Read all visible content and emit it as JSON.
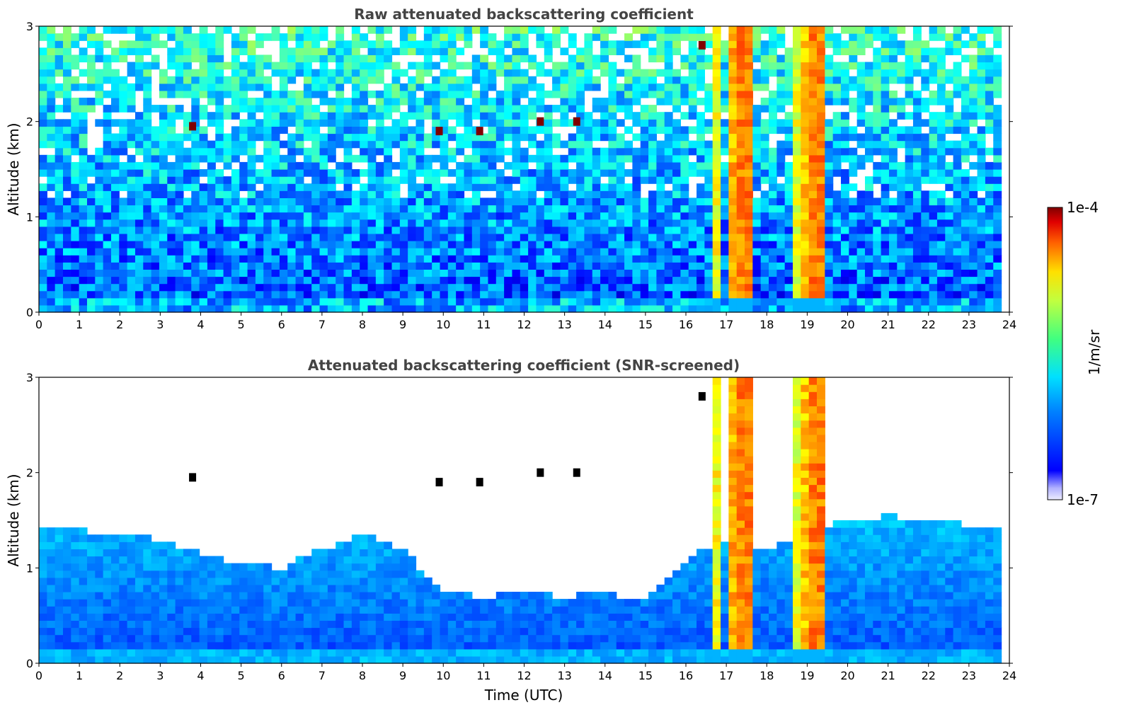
{
  "chart_data": [
    {
      "type": "heatmap",
      "title": "Raw attenuated backscattering coefficient",
      "xlabel": "",
      "ylabel": "Altitude (km)",
      "xlim": [
        0,
        24
      ],
      "ylim": [
        0,
        3
      ],
      "xticks": [
        "0",
        "1",
        "2",
        "3",
        "4",
        "5",
        "6",
        "7",
        "8",
        "9",
        "10",
        "11",
        "12",
        "13",
        "14",
        "15",
        "16",
        "17",
        "18",
        "19",
        "20",
        "21",
        "22",
        "23",
        "24"
      ],
      "yticks": [
        "0",
        "1",
        "2",
        "3"
      ],
      "data_extent_x": [
        0,
        23.8
      ],
      "screened": false,
      "cloud_bands": [
        {
          "x": [
            16.6,
            16.8
          ],
          "color_level": 0.62
        },
        {
          "x": [
            17.1,
            17.35
          ],
          "color_level": 0.7
        },
        {
          "x": [
            17.35,
            17.7
          ],
          "color_level": 0.75
        },
        {
          "x": [
            18.6,
            18.85
          ],
          "color_level": 0.6
        },
        {
          "x": [
            18.85,
            19.1
          ],
          "color_level": 0.68
        },
        {
          "x": [
            19.1,
            19.5
          ],
          "color_level": 0.75
        }
      ],
      "elevated_features": [
        {
          "x": 3.8,
          "y": 1.95,
          "color_level": 1.0
        },
        {
          "x": 9.9,
          "y": 1.9,
          "color_level": 1.0
        },
        {
          "x": 10.9,
          "y": 1.9,
          "color_level": 1.0
        },
        {
          "x": 12.4,
          "y": 2.0,
          "color_level": 1.0
        },
        {
          "x": 13.3,
          "y": 2.0,
          "color_level": 1.0
        },
        {
          "x": 16.4,
          "y": 2.8,
          "color_level": 1.0
        }
      ]
    },
    {
      "type": "heatmap",
      "title": "Attenuated backscattering coefficient (SNR-screened)",
      "xlabel": "Time (UTC)",
      "ylabel": "Altitude (km)",
      "xlim": [
        0,
        24
      ],
      "ylim": [
        0,
        3
      ],
      "xticks": [
        "0",
        "1",
        "2",
        "3",
        "4",
        "5",
        "6",
        "7",
        "8",
        "9",
        "10",
        "11",
        "12",
        "13",
        "14",
        "15",
        "16",
        "17",
        "18",
        "19",
        "20",
        "21",
        "22",
        "23",
        "24"
      ],
      "yticks": [
        "0",
        "1",
        "2",
        "3"
      ],
      "data_extent_x": [
        0,
        23.8
      ],
      "screened": true,
      "screen_top_km": [
        [
          0,
          1.45
        ],
        [
          1,
          1.4
        ],
        [
          2,
          1.35
        ],
        [
          3,
          1.3
        ],
        [
          4,
          1.15
        ],
        [
          5,
          1.05
        ],
        [
          6,
          1.0
        ],
        [
          7,
          1.2
        ],
        [
          8,
          1.35
        ],
        [
          9,
          1.2
        ],
        [
          10,
          0.75
        ],
        [
          11,
          0.7
        ],
        [
          12,
          0.75
        ],
        [
          13,
          0.7
        ],
        [
          14,
          0.75
        ],
        [
          15,
          0.65
        ],
        [
          16,
          1.1
        ],
        [
          17,
          1.3
        ],
        [
          18,
          1.2
        ],
        [
          19,
          1.4
        ],
        [
          20,
          1.5
        ],
        [
          21,
          1.55
        ],
        [
          22,
          1.5
        ],
        [
          23,
          1.45
        ],
        [
          23.8,
          1.45
        ]
      ]
    }
  ],
  "colorbar": {
    "label": "1/m/sr",
    "max_label": "1e-4",
    "min_label": "1e-7",
    "colormap": "jet",
    "scale": "log",
    "range": [
      1e-07,
      0.0001
    ]
  }
}
